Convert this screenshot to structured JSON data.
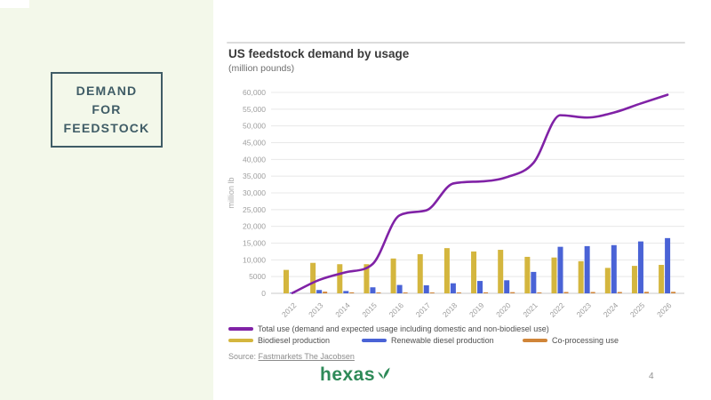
{
  "sidebar": {
    "title": "DEMAND FOR FEEDSTOCK",
    "bg_color": "#f3f8ea",
    "box_color": "#3f5c66"
  },
  "chart_data": {
    "type": "combo",
    "title": "US feedstock demand by usage",
    "subtitle": "(million pounds)",
    "ylabel": "million lb",
    "ylim": [
      0,
      60000
    ],
    "ytick_step": 5000,
    "ytick_labels": [
      "0",
      "5000",
      "10,000",
      "15,000",
      "20,000",
      "25,000",
      "30,000",
      "35,000",
      "40,000",
      "45,000",
      "50,000",
      "55,000",
      "60,000"
    ],
    "grid": "horizontal",
    "legend_position": "bottom",
    "categories": [
      "2012",
      "2013",
      "2014",
      "2015",
      "2016",
      "2017",
      "2018",
      "2019",
      "2020",
      "2021",
      "2022",
      "2023",
      "2024",
      "2025",
      "2026"
    ],
    "series": [
      {
        "name": "Total use (demand and expected usage including domestic and non-biodiesel use)",
        "type": "line",
        "color": "#8022a6",
        "values": [
          100,
          4000,
          6300,
          8800,
          23300,
          24800,
          32800,
          33400,
          34700,
          39000,
          53200,
          52500,
          54000,
          56700,
          59300
        ]
      },
      {
        "name": "Biodiesel production",
        "type": "bar",
        "color": "#d4b63e",
        "values": [
          7000,
          9100,
          8700,
          8700,
          10400,
          11700,
          13500,
          12500,
          13000,
          10900,
          10700,
          9600,
          7600,
          8200,
          8500
        ]
      },
      {
        "name": "Renewable diesel production",
        "type": "bar",
        "color": "#4a63d6",
        "values": [
          100,
          1000,
          700,
          1800,
          2500,
          2400,
          3000,
          3700,
          3900,
          6400,
          13900,
          14100,
          14400,
          15500,
          16500
        ]
      },
      {
        "name": "Co-processing use",
        "type": "bar",
        "color": "#d08539",
        "values": [
          0,
          500,
          300,
          200,
          200,
          200,
          250,
          300,
          350,
          250,
          400,
          400,
          400,
          450,
          450
        ]
      }
    ]
  },
  "source": {
    "prefix": "Source:",
    "link_text": "Fastmarkets The Jacobsen"
  },
  "footer": {
    "logo_text": "hexas",
    "logo_color": "#2e8a58",
    "page_number": "4"
  }
}
